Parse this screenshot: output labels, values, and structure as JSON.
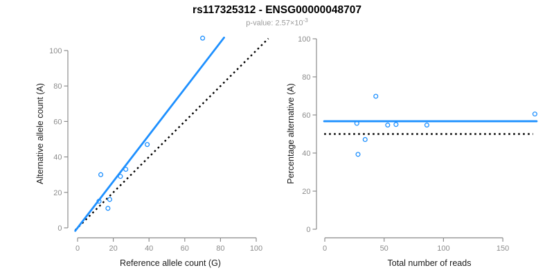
{
  "header": {
    "title": "rs117325312 - ENSG00000048707",
    "pvalue_label": "p-value: ",
    "pvalue_base": "2.57×10",
    "pvalue_exponent": "-3"
  },
  "colors": {
    "series_blue": "#1E90FF",
    "reference_black": "#000000",
    "axis_gray": "#8c8c8c",
    "tick_text_gray": "#8c8c8c",
    "axis_title_black": "#1a1a1a",
    "subtitle_gray": "#9b9b9b"
  },
  "chart_data": [
    {
      "id": "left",
      "type": "scatter",
      "title": "",
      "xlabel": "Reference allele count (G)",
      "ylabel": "Alternative allele count (A)",
      "xlim": [
        -4,
        108
      ],
      "ylim": [
        -6,
        110
      ],
      "x_ticks": [
        0,
        20,
        40,
        60,
        80,
        100
      ],
      "y_ticks": [
        0,
        20,
        40,
        60,
        80,
        100
      ],
      "grid": false,
      "legend": "none",
      "marker": "open-circle",
      "points": [
        [
          12,
          15
        ],
        [
          13,
          30
        ],
        [
          17,
          11
        ],
        [
          18,
          16
        ],
        [
          24,
          29
        ],
        [
          27,
          33
        ],
        [
          39,
          47
        ],
        [
          70,
          107
        ]
      ],
      "lines": [
        {
          "name": "regression-line",
          "style": "solid",
          "color_key": "series_blue",
          "x1": -1.3,
          "y1": -1.7,
          "x2": 82,
          "y2": 107.3
        },
        {
          "name": "identity-line",
          "style": "dotted",
          "color_key": "reference_black",
          "x1": -1.3,
          "y1": -1.3,
          "x2": 106.8,
          "y2": 106.8
        }
      ]
    },
    {
      "id": "right",
      "type": "scatter",
      "title": "",
      "xlabel": "Total number of reads",
      "ylabel": "Percentage alternative (A)",
      "xlim": [
        -8,
        185
      ],
      "ylim": [
        -4,
        103
      ],
      "x_ticks": [
        0,
        50,
        100,
        150
      ],
      "y_ticks": [
        0,
        20,
        40,
        60,
        80,
        100
      ],
      "grid": false,
      "legend": "none",
      "marker": "open-circle",
      "points": [
        [
          27,
          55.6
        ],
        [
          28,
          39.3
        ],
        [
          34,
          47.1
        ],
        [
          43,
          69.8
        ],
        [
          53,
          54.7
        ],
        [
          60,
          55.0
        ],
        [
          86,
          54.7
        ],
        [
          177,
          60.5
        ]
      ],
      "lines": [
        {
          "name": "mean-percentage-line",
          "style": "solid",
          "color_key": "series_blue",
          "x1": -0.5,
          "y1": 56.7,
          "x2": 178.5,
          "y2": 56.7
        },
        {
          "name": "fifty-percent-reference-line",
          "style": "dotted",
          "color_key": "reference_black",
          "x1": -0.5,
          "y1": 50,
          "x2": 175.5,
          "y2": 50
        }
      ]
    }
  ]
}
